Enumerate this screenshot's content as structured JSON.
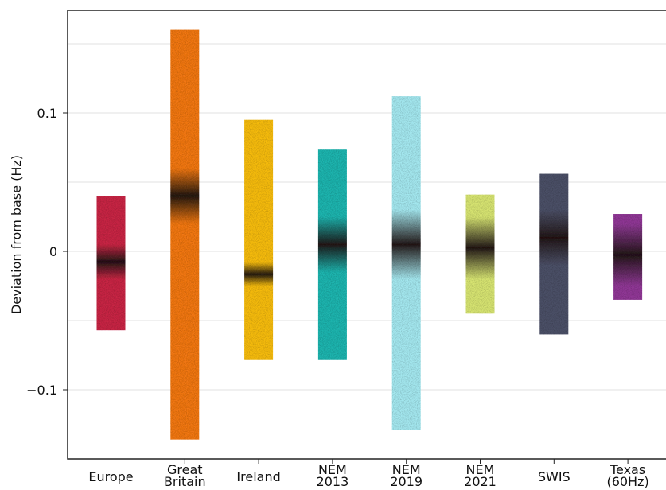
{
  "chart_data": {
    "type": "bar",
    "title": "",
    "ylabel": "Deviation from base (Hz)",
    "xlabel": "",
    "ylim": [
      -0.15,
      0.175
    ],
    "y_ticks": [
      {
        "value": 0.1,
        "label": "0.1"
      },
      {
        "value": 0,
        "label": "0"
      },
      {
        "value": -0.1,
        "label": "−0.1"
      }
    ],
    "grid_values": [
      0.15,
      0.1,
      0.05,
      0,
      -0.05,
      -0.1
    ],
    "grid": true,
    "categories": [
      "Europe",
      "Great Britain",
      "Ireland",
      "NEM 2013",
      "NEM 2019",
      "NEM 2021",
      "SWIS",
      "Texas (60Hz)"
    ],
    "category_labels": [
      [
        "Europe"
      ],
      [
        "Great",
        "Britain"
      ],
      [
        "Ireland"
      ],
      [
        "NEM",
        "2013"
      ],
      [
        "NEM",
        "2019"
      ],
      [
        "NEM",
        "2021"
      ],
      [
        "SWIS"
      ],
      [
        "Texas",
        "(60Hz)"
      ]
    ],
    "series": [
      {
        "category": "Europe",
        "min": -0.057,
        "max": 0.04,
        "dense": [
          -0.02,
          0.005
        ],
        "color": "#c41e3a"
      },
      {
        "category": "Great Britain",
        "min": -0.136,
        "max": 0.16,
        "dense": [
          0.02,
          0.06
        ],
        "color": "#f07010"
      },
      {
        "category": "Ireland",
        "min": -0.078,
        "max": 0.095,
        "dense": [
          -0.025,
          -0.008
        ],
        "color": "#f5b800"
      },
      {
        "category": "NEM 2013",
        "min": -0.078,
        "max": 0.074,
        "dense": [
          -0.015,
          0.025
        ],
        "color": "#14b0aa"
      },
      {
        "category": "NEM 2019",
        "min": -0.129,
        "max": 0.112,
        "dense": [
          -0.02,
          0.03
        ],
        "color": "#9fe6ee"
      },
      {
        "category": "NEM 2021",
        "min": -0.045,
        "max": 0.041,
        "dense": [
          -0.02,
          0.025
        ],
        "color": "#d4e26a"
      },
      {
        "category": "SWIS",
        "min": -0.06,
        "max": 0.056,
        "dense": [
          -0.01,
          0.03
        ],
        "color": "#42465e"
      },
      {
        "category": "Texas (60Hz)",
        "min": -0.035,
        "max": 0.027,
        "dense": [
          -0.025,
          0.02
        ],
        "color": "#8a2f90"
      }
    ]
  }
}
